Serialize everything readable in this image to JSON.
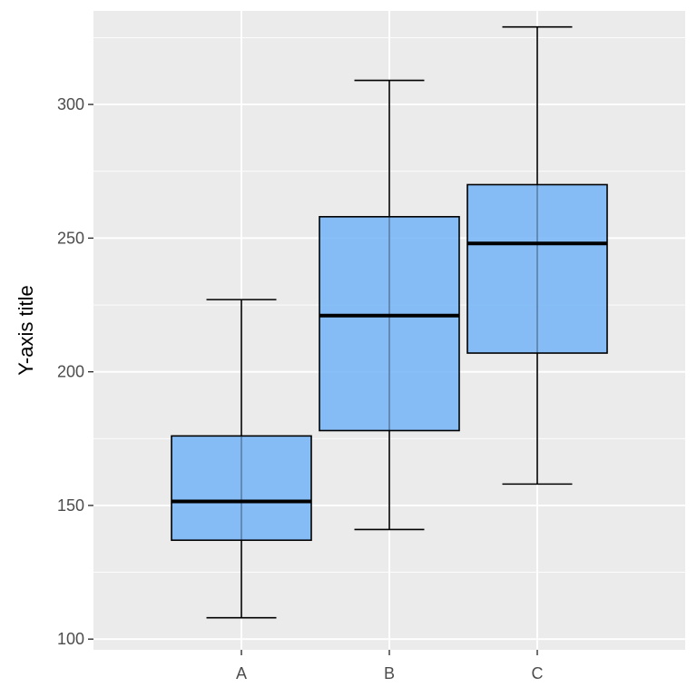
{
  "chart_data": {
    "type": "boxplot",
    "title": "",
    "xlabel": "",
    "ylabel": "Y-axis title",
    "ylim": [
      96,
      335
    ],
    "yticks": [
      100,
      150,
      200,
      250,
      300
    ],
    "grid": true,
    "categories": [
      "A",
      "B",
      "C"
    ],
    "boxes": [
      {
        "category": "A",
        "min": 108,
        "q1": 137,
        "median": 151.5,
        "q3": 176,
        "max": 227
      },
      {
        "category": "B",
        "min": 141,
        "q1": 178,
        "median": 221,
        "q3": 258,
        "max": 309
      },
      {
        "category": "C",
        "min": 158,
        "q1": 207,
        "median": 248,
        "q3": 270,
        "max": 329
      }
    ],
    "colors": {
      "panel": "#ebebeb",
      "grid": "#ffffff",
      "box_fill": "#6eb1f6",
      "box_line": "#000000"
    }
  }
}
